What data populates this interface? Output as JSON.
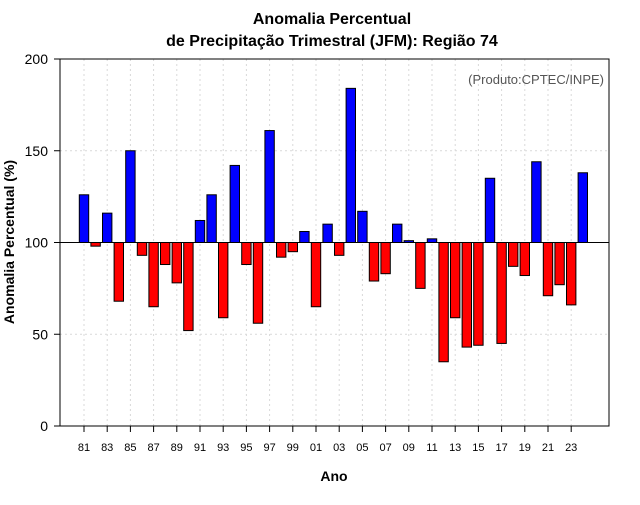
{
  "chart_data": {
    "type": "bar",
    "title_line1": "Anomalia Percentual",
    "title_line2": "de Precipitação Trimestral (JFM): Região 74",
    "xlabel": "Ano",
    "ylabel": "Anomalia Percentual (%)",
    "credit": "(Produto:CPTEC/INPE)",
    "ylim": [
      0,
      200
    ],
    "yticks": [
      "0",
      "50",
      "100",
      "150",
      "200"
    ],
    "baseline": 100,
    "grid": true,
    "colors": {
      "above": "#0000ff",
      "below": "#ff0000",
      "outline": "#000000",
      "grid": "#d9d9d9"
    },
    "categories": [
      "81",
      "82",
      "83",
      "84",
      "85",
      "86",
      "87",
      "88",
      "89",
      "90",
      "91",
      "92",
      "93",
      "94",
      "95",
      "96",
      "97",
      "98",
      "99",
      "00",
      "01",
      "02",
      "03",
      "04",
      "05",
      "06",
      "07",
      "08",
      "09",
      "10",
      "11",
      "12",
      "13",
      "14",
      "15",
      "16",
      "17",
      "18",
      "19",
      "20",
      "21",
      "22",
      "23",
      "24"
    ],
    "tick_labels": [
      "81",
      "83",
      "85",
      "87",
      "89",
      "91",
      "93",
      "95",
      "97",
      "99",
      "01",
      "03",
      "05",
      "07",
      "09",
      "11",
      "13",
      "15",
      "17",
      "19",
      "21",
      "23"
    ],
    "values": [
      126,
      98,
      116,
      68,
      150,
      93,
      65,
      88,
      78,
      52,
      112,
      126,
      59,
      142,
      88,
      56,
      161,
      92,
      95,
      106,
      65,
      110,
      93,
      184,
      117,
      79,
      83,
      110,
      101,
      75,
      102,
      35,
      59,
      43,
      44,
      135,
      45,
      87,
      82,
      144,
      71,
      77,
      66,
      138
    ]
  }
}
